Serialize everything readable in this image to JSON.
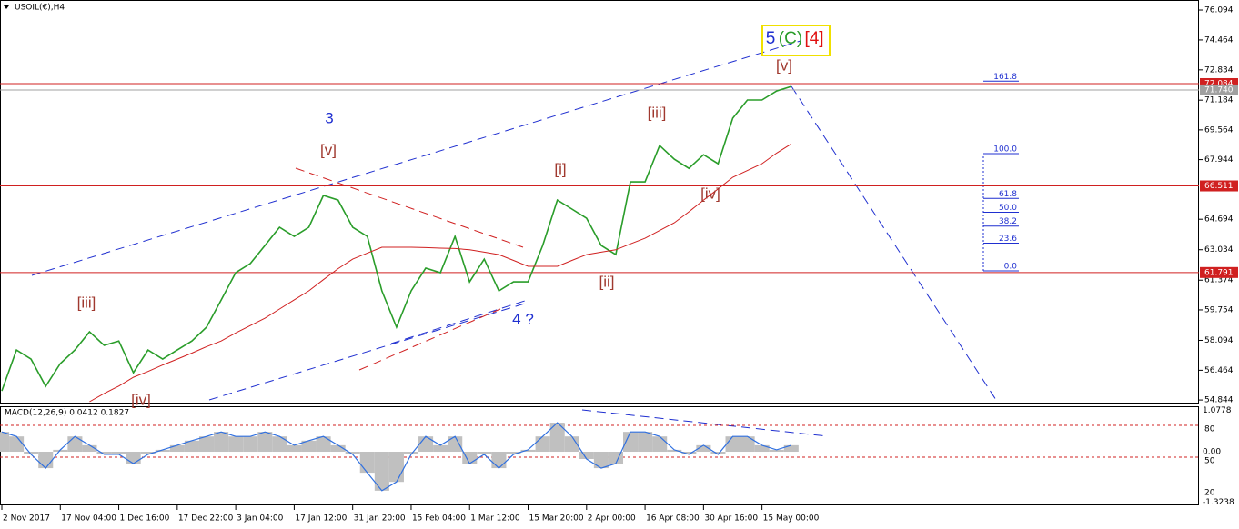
{
  "chart_data": {
    "type": "line",
    "title": "USOIL(€),H4",
    "categories": [
      "2 Nov 2017",
      null,
      null,
      null,
      "17 Nov 04:00",
      null,
      null,
      null,
      "1 Dec 16:00",
      null,
      null,
      null,
      "17 Dec 22:00",
      null,
      null,
      null,
      "3 Jan 04:00",
      null,
      null,
      null,
      "17 Jan 12:00",
      null,
      null,
      null,
      "31 Jan 20:00",
      null,
      null,
      null,
      "15 Feb 04:00",
      null,
      null,
      null,
      "1 Mar 12:00",
      null,
      null,
      null,
      "15 Mar 20:00",
      null,
      null,
      null,
      "2 Apr 00:00",
      null,
      null,
      null,
      "16 Apr 08:00",
      null,
      null,
      null,
      "30 Apr 16:00",
      null,
      null,
      null,
      "15 May 00:00",
      null,
      null
    ],
    "series": [
      {
        "name": "USOIL",
        "color": "#2a9d2a",
        "values": [
          55.34,
          57.57,
          57.07,
          55.59,
          56.83,
          57.57,
          58.56,
          57.82,
          58.06,
          56.33,
          57.57,
          57.07,
          57.57,
          58.06,
          58.81,
          60.29,
          61.78,
          62.28,
          63.27,
          64.26,
          63.76,
          64.26,
          65.99,
          65.74,
          64.26,
          63.76,
          60.79,
          58.81,
          60.79,
          62.03,
          61.78,
          63.76,
          61.28,
          62.52,
          60.79,
          61.28,
          61.28,
          63.27,
          65.74,
          65.25,
          64.75,
          63.27,
          62.77,
          66.73,
          66.73,
          68.71,
          67.97,
          67.47,
          68.21,
          67.72,
          70.2,
          71.19,
          71.19,
          71.68,
          71.93
        ]
      },
      {
        "name": "MA",
        "color": "#d02020",
        "values": [
          null,
          null,
          null,
          null,
          null,
          null,
          54.75,
          55.2,
          55.6,
          56.08,
          56.4,
          56.75,
          57.07,
          57.4,
          57.75,
          58.06,
          58.5,
          58.9,
          59.3,
          59.8,
          60.3,
          60.79,
          61.4,
          62.0,
          62.52,
          62.85,
          63.17,
          63.17,
          63.17,
          63.15,
          63.12,
          63.1,
          63.03,
          62.9,
          62.77,
          62.45,
          62.13,
          62.13,
          62.13,
          62.45,
          62.77,
          62.9,
          63.03,
          63.35,
          63.66,
          64.08,
          64.5,
          65.1,
          65.74,
          66.35,
          66.98,
          67.35,
          67.72,
          68.3,
          68.8
        ]
      }
    ],
    "ylim": [
      54.7,
      76.64
    ],
    "yticks": [
      {
        "value": 76.094,
        "label": "76.094"
      },
      {
        "value": 74.464,
        "label": "74.464"
      },
      {
        "value": 72.834,
        "label": "72.834"
      },
      {
        "value": 71.184,
        "label": "71.184"
      },
      {
        "value": 69.564,
        "label": "69.564"
      },
      {
        "value": 67.944,
        "label": "67.944"
      },
      {
        "value": 64.694,
        "label": "64.694"
      },
      {
        "value": 63.034,
        "label": "63.034"
      },
      {
        "value": 61.374,
        "label": "61.374"
      },
      {
        "value": 59.754,
        "label": "59.754"
      },
      {
        "value": 58.094,
        "label": "58.094"
      },
      {
        "value": 56.464,
        "label": "56.464"
      },
      {
        "value": 54.844,
        "label": "54.844"
      }
    ],
    "levels": [
      {
        "value": 72.084,
        "label": "72.084",
        "color": "#d02020"
      },
      {
        "value": 71.74,
        "label": "71.740",
        "color": "#a0a0a0"
      },
      {
        "value": 66.511,
        "label": "66.511",
        "color": "#d02020"
      },
      {
        "value": 61.791,
        "label": "61.791",
        "color": "#d02020"
      }
    ],
    "fib": [
      {
        "value": 161.8,
        "label": "161.8"
      },
      {
        "value": 100,
        "label": "100.0"
      },
      {
        "value": 61.8,
        "label": "61.8"
      },
      {
        "value": 50,
        "label": "50.0"
      },
      {
        "value": 38.2,
        "label": "38.2"
      },
      {
        "value": 23.6,
        "label": "23.6"
      },
      {
        "value": 0,
        "label": "0.0"
      }
    ],
    "annotations": [
      {
        "text": "[iii]",
        "color": "#a0392f"
      },
      {
        "text": "[iv]",
        "color": "#a0392f"
      },
      {
        "text": "3",
        "color": "#1f2fd0"
      },
      {
        "text": "[v]",
        "color": "#a0392f"
      },
      {
        "text": "4 ?",
        "color": "#1f2fd0"
      },
      {
        "text": "[i]",
        "color": "#a0392f"
      },
      {
        "text": "[ii]",
        "color": "#a0392f"
      },
      {
        "text": "[iii]",
        "color": "#a0392f"
      },
      {
        "text": "[iv]",
        "color": "#a0392f"
      },
      {
        "text": "[v]",
        "color": "#a0392f"
      },
      {
        "text": "5",
        "color": "#1f2fd0"
      },
      {
        "text": "(C)",
        "color": "#2a9d2a"
      },
      {
        "text": "[4]",
        "color": "#e01010"
      }
    ],
    "macd": {
      "title": "MACD(12,26,9) 0.0412 0.1827",
      "color": "#3070e0",
      "values": [
        0.52,
        0.4,
        -0.07,
        -0.43,
        0.05,
        0.4,
        0.17,
        -0.07,
        -0.07,
        -0.31,
        -0.07,
        0.05,
        0.17,
        0.29,
        0.4,
        0.52,
        0.4,
        0.4,
        0.52,
        0.4,
        0.17,
        0.29,
        0.4,
        0.17,
        -0.07,
        -0.55,
        -1.02,
        -0.79,
        -0.07,
        0.4,
        0.17,
        0.4,
        -0.31,
        -0.07,
        -0.43,
        -0.07,
        0.05,
        0.4,
        0.76,
        0.4,
        -0.19,
        -0.43,
        -0.31,
        0.52,
        0.52,
        0.4,
        0.05,
        -0.07,
        0.17,
        -0.07,
        0.4,
        0.4,
        0.17,
        0.05,
        0.17
      ],
      "ylim": [
        -1.38,
        1.19
      ],
      "yticks": [
        {
          "value": 1.0778,
          "label": "1.0778"
        },
        {
          "value": 0,
          "label": "0.00"
        },
        {
          "value": -1.3238,
          "label": "-1.3238"
        }
      ],
      "y2lim": [
        5.4,
        98
      ],
      "y2ticks": [
        80,
        50,
        20
      ]
    }
  }
}
